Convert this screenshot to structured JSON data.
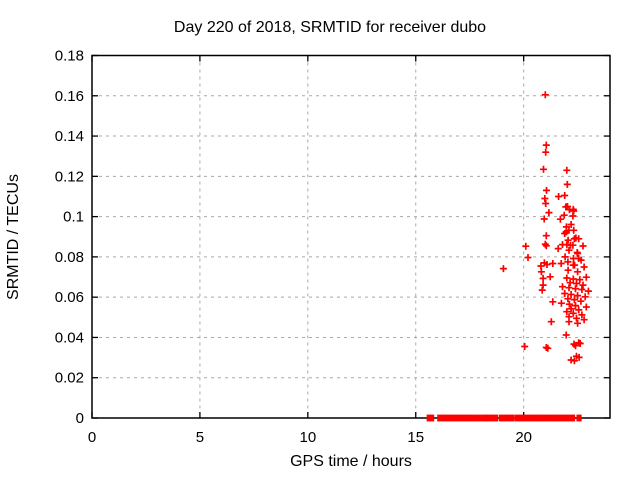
{
  "window": {
    "background_color": "#ffffff",
    "text_color": "#000000"
  },
  "chart_data": {
    "type": "scatter",
    "title": "Day 220 of 2018, SRMTID for receiver dubo",
    "xlabel": "GPS time / hours",
    "ylabel": "SRMTID / TECUs",
    "xlim": [
      0,
      24
    ],
    "ylim": [
      0,
      0.18
    ],
    "xticks": [
      0,
      5,
      10,
      15,
      20
    ],
    "xtick_labels": [
      "0",
      "5",
      "10",
      "15",
      "20"
    ],
    "yticks": [
      0,
      0.02,
      0.04,
      0.06,
      0.08,
      0.1,
      0.12,
      0.14,
      0.16,
      0.18
    ],
    "ytick_labels": [
      "0",
      "0.02",
      "0.04",
      "0.06",
      "0.08",
      "0.1",
      "0.12",
      "0.14",
      "0.16",
      "0.18"
    ],
    "grid": {
      "style": "dashed",
      "color": "#a9a9a9"
    },
    "border_color": "#000000",
    "legend": "none",
    "marker": {
      "shape": "plus",
      "color": "#ff0000",
      "size": 7
    },
    "series": [
      {
        "name": "SRMTID",
        "points": [
          [
            21.0,
            0.1605
          ],
          [
            21.05,
            0.1355
          ],
          [
            21.02,
            0.132
          ],
          [
            20.92,
            0.1235
          ],
          [
            22.0,
            0.123
          ],
          [
            22.02,
            0.116
          ],
          [
            21.06,
            0.113
          ],
          [
            21.62,
            0.11
          ],
          [
            21.9,
            0.1105
          ],
          [
            20.98,
            0.109
          ],
          [
            21.02,
            0.1065
          ],
          [
            22.03,
            0.105
          ],
          [
            21.95,
            0.1048
          ],
          [
            22.12,
            0.1035
          ],
          [
            22.3,
            0.1036
          ],
          [
            22.32,
            0.1028
          ],
          [
            21.17,
            0.102
          ],
          [
            21.88,
            0.1007
          ],
          [
            22.28,
            0.1003
          ],
          [
            20.95,
            0.0988
          ],
          [
            21.7,
            0.0987
          ],
          [
            22.2,
            0.0961
          ],
          [
            21.98,
            0.0949
          ],
          [
            22.32,
            0.0932
          ],
          [
            22.1,
            0.0932
          ],
          [
            21.9,
            0.0916
          ],
          [
            21.97,
            0.0924
          ],
          [
            21.05,
            0.0905
          ],
          [
            22.42,
            0.0894
          ],
          [
            22.35,
            0.089
          ],
          [
            22.55,
            0.089
          ],
          [
            22.06,
            0.0883
          ],
          [
            21.0,
            0.0863
          ],
          [
            21.8,
            0.0861
          ],
          [
            22.0,
            0.086
          ],
          [
            22.28,
            0.0858
          ],
          [
            22.17,
            0.0858
          ],
          [
            21.05,
            0.0855
          ],
          [
            20.1,
            0.0853
          ],
          [
            22.75,
            0.0854
          ],
          [
            21.6,
            0.0841
          ],
          [
            22.1,
            0.0833
          ],
          [
            22.48,
            0.0822
          ],
          [
            22.5,
            0.0817
          ],
          [
            21.92,
            0.08
          ],
          [
            20.2,
            0.0797
          ],
          [
            22.31,
            0.0792
          ],
          [
            22.55,
            0.0792
          ],
          [
            22.66,
            0.0784
          ],
          [
            22.05,
            0.0775
          ],
          [
            20.96,
            0.077
          ],
          [
            21.74,
            0.0767
          ],
          [
            21.35,
            0.0767
          ],
          [
            21.08,
            0.0762
          ],
          [
            22.36,
            0.0759
          ],
          [
            22.3,
            0.0759
          ],
          [
            20.8,
            0.0755
          ],
          [
            22.8,
            0.075
          ],
          [
            19.06,
            0.0742
          ],
          [
            22.06,
            0.0734
          ],
          [
            20.82,
            0.0726
          ],
          [
            22.5,
            0.0726
          ],
          [
            21.23,
            0.0701
          ],
          [
            22.9,
            0.0699
          ],
          [
            22.0,
            0.0695
          ],
          [
            20.9,
            0.0693
          ],
          [
            22.3,
            0.069
          ],
          [
            22.6,
            0.0687
          ],
          [
            22.15,
            0.0672
          ],
          [
            22.45,
            0.0668
          ],
          [
            22.75,
            0.066
          ],
          [
            20.9,
            0.066
          ],
          [
            21.8,
            0.0652
          ],
          [
            22.1,
            0.0647
          ],
          [
            22.4,
            0.0642
          ],
          [
            22.7,
            0.0638
          ],
          [
            20.86,
            0.0635
          ],
          [
            23.0,
            0.063
          ],
          [
            21.9,
            0.0618
          ],
          [
            22.2,
            0.0613
          ],
          [
            22.5,
            0.0608
          ],
          [
            22.85,
            0.0602
          ],
          [
            22.05,
            0.0592
          ],
          [
            22.35,
            0.0588
          ],
          [
            22.65,
            0.058
          ],
          [
            21.35,
            0.0577
          ],
          [
            21.75,
            0.057
          ],
          [
            22.12,
            0.0565
          ],
          [
            22.4,
            0.0558
          ],
          [
            22.9,
            0.0551
          ],
          [
            22.2,
            0.0542
          ],
          [
            22.55,
            0.0537
          ],
          [
            22.0,
            0.0528
          ],
          [
            22.3,
            0.052
          ],
          [
            22.7,
            0.0512
          ],
          [
            22.1,
            0.0503
          ],
          [
            22.45,
            0.0495
          ],
          [
            22.8,
            0.0488
          ],
          [
            21.28,
            0.0478
          ],
          [
            22.1,
            0.0478
          ],
          [
            22.5,
            0.047
          ],
          [
            21.97,
            0.0412
          ],
          [
            22.55,
            0.0374
          ],
          [
            22.62,
            0.037
          ],
          [
            22.33,
            0.0367
          ],
          [
            22.4,
            0.0359
          ],
          [
            20.05,
            0.0355
          ],
          [
            21.05,
            0.035
          ],
          [
            21.12,
            0.0346
          ],
          [
            22.45,
            0.0307
          ],
          [
            22.57,
            0.0301
          ],
          [
            22.2,
            0.0288
          ],
          [
            22.35,
            0.0284
          ]
        ],
        "baseline_value": 0,
        "baseline_segments": [
          [
            15.56,
            15.65
          ],
          [
            15.72,
            15.8
          ],
          [
            16.05,
            16.08
          ],
          [
            16.17,
            16.2
          ],
          [
            16.28,
            16.44
          ],
          [
            16.5,
            17.4
          ],
          [
            17.5,
            17.78
          ],
          [
            17.88,
            18.28
          ],
          [
            18.33,
            18.65
          ],
          [
            18.72,
            18.76
          ],
          [
            18.9,
            19.5
          ],
          [
            19.62,
            20.65
          ],
          [
            20.72,
            20.88
          ],
          [
            20.97,
            21.55
          ],
          [
            21.6,
            21.9
          ],
          [
            21.97,
            22.1
          ],
          [
            22.2,
            22.23
          ],
          [
            22.3,
            22.33
          ],
          [
            22.5,
            22.53
          ],
          [
            22.6,
            22.63
          ]
        ]
      }
    ]
  }
}
